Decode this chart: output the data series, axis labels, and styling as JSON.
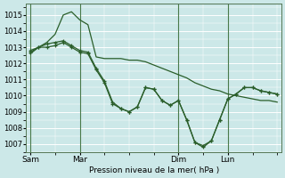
{
  "xlabel": "Pression niveau de la mer( hPa )",
  "ylim": [
    1006.5,
    1015.7
  ],
  "yticks": [
    1007,
    1008,
    1009,
    1010,
    1011,
    1012,
    1013,
    1014,
    1015
  ],
  "bg_color": "#cce8e8",
  "grid_color": "#ffffff",
  "line_color": "#2a5e2a",
  "vline_color": "#4a7a4a",
  "xtick_labels": [
    "Sam",
    "Mar",
    "Dim",
    "Lun"
  ],
  "xtick_positions": [
    0,
    36,
    108,
    144
  ],
  "xlim": [
    -3,
    183
  ],
  "series1_x": [
    0,
    6,
    12,
    18,
    24,
    30,
    36,
    42,
    48,
    54,
    60,
    66,
    72,
    78,
    84,
    90,
    96,
    102,
    108,
    114,
    120,
    126,
    132,
    138,
    144,
    150,
    156,
    162,
    168,
    174,
    180
  ],
  "series1_y": [
    1012.8,
    1013.0,
    1013.0,
    1013.1,
    1013.3,
    1013.0,
    1012.7,
    1012.6,
    1011.6,
    1010.8,
    1009.5,
    1009.2,
    1009.0,
    1009.3,
    1010.5,
    1010.4,
    1009.7,
    1009.4,
    1009.7,
    1008.5,
    1007.1,
    1006.9,
    1007.2,
    1008.5,
    1009.8,
    1010.1,
    1010.5,
    1010.5,
    1010.3,
    1010.2,
    1010.1
  ],
  "series2_x": [
    0,
    6,
    12,
    18,
    24,
    30,
    36,
    42,
    48,
    54,
    60,
    66,
    72,
    78,
    84,
    90,
    96,
    102,
    108,
    114,
    120,
    126,
    132,
    138,
    144,
    150,
    156,
    162,
    168,
    174,
    180
  ],
  "series2_y": [
    1012.7,
    1013.0,
    1013.2,
    1013.3,
    1013.4,
    1013.1,
    1012.8,
    1012.7,
    1011.7,
    1010.9,
    1009.6,
    1009.2,
    1009.0,
    1009.3,
    1010.5,
    1010.4,
    1009.7,
    1009.4,
    1009.7,
    1008.5,
    1007.1,
    1006.8,
    1007.2,
    1008.5,
    1009.8,
    1010.1,
    1010.5,
    1010.5,
    1010.3,
    1010.2,
    1010.1
  ],
  "series3_x": [
    0,
    6,
    12,
    18,
    24,
    30,
    36,
    42,
    48,
    54,
    60,
    66,
    72,
    78,
    84,
    90,
    96,
    102,
    108,
    114,
    120,
    126,
    132,
    138,
    144,
    150,
    156,
    162,
    168,
    174,
    180
  ],
  "series3_y": [
    1012.6,
    1013.0,
    1013.3,
    1013.8,
    1015.0,
    1015.2,
    1014.7,
    1014.4,
    1012.4,
    1012.3,
    1012.3,
    1012.3,
    1012.2,
    1012.2,
    1012.1,
    1011.9,
    1011.7,
    1011.5,
    1011.3,
    1011.1,
    1010.8,
    1010.6,
    1010.4,
    1010.3,
    1010.1,
    1010.0,
    1009.9,
    1009.8,
    1009.7,
    1009.7,
    1009.6
  ]
}
